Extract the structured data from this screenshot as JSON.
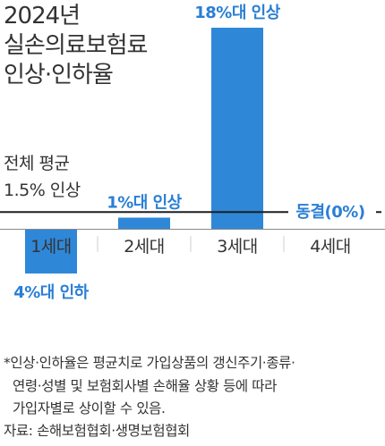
{
  "title_lines": [
    "2024년",
    "실손의료보험료",
    "인상·인하율"
  ],
  "average": {
    "line1": "전체 평균",
    "line2": "1.5% 인상"
  },
  "notes": [
    "*인상·인하율은 평균치로 가입상품의 갱신주기·종류·",
    "연령·성별 및 보험회사별 손해율 상황 등에 따라",
    "가입자별로 상이할 수 있음."
  ],
  "source": "자료: 손해보험협회·생명보험협회",
  "colors": {
    "bar": "#2f87d8",
    "label": "#2a7fd4",
    "line": "#1f1f1f",
    "tick": "#cfcfcf",
    "text": "#333333"
  },
  "chart_data": {
    "type": "bar",
    "title": "2024년 실손의료보험료 인상·인하율",
    "categories": [
      "1세대",
      "2세대",
      "3세대",
      "4세대"
    ],
    "values": [
      -4,
      1,
      18,
      0
    ],
    "data_labels": [
      "4%대 인하",
      "1%대 인상",
      "18%대 인상",
      "동결(0%)"
    ],
    "reference_line": {
      "value": 1.5,
      "label": "전체 평균 1.5% 인상"
    },
    "unit": "%",
    "grid": false,
    "legend": "none"
  }
}
